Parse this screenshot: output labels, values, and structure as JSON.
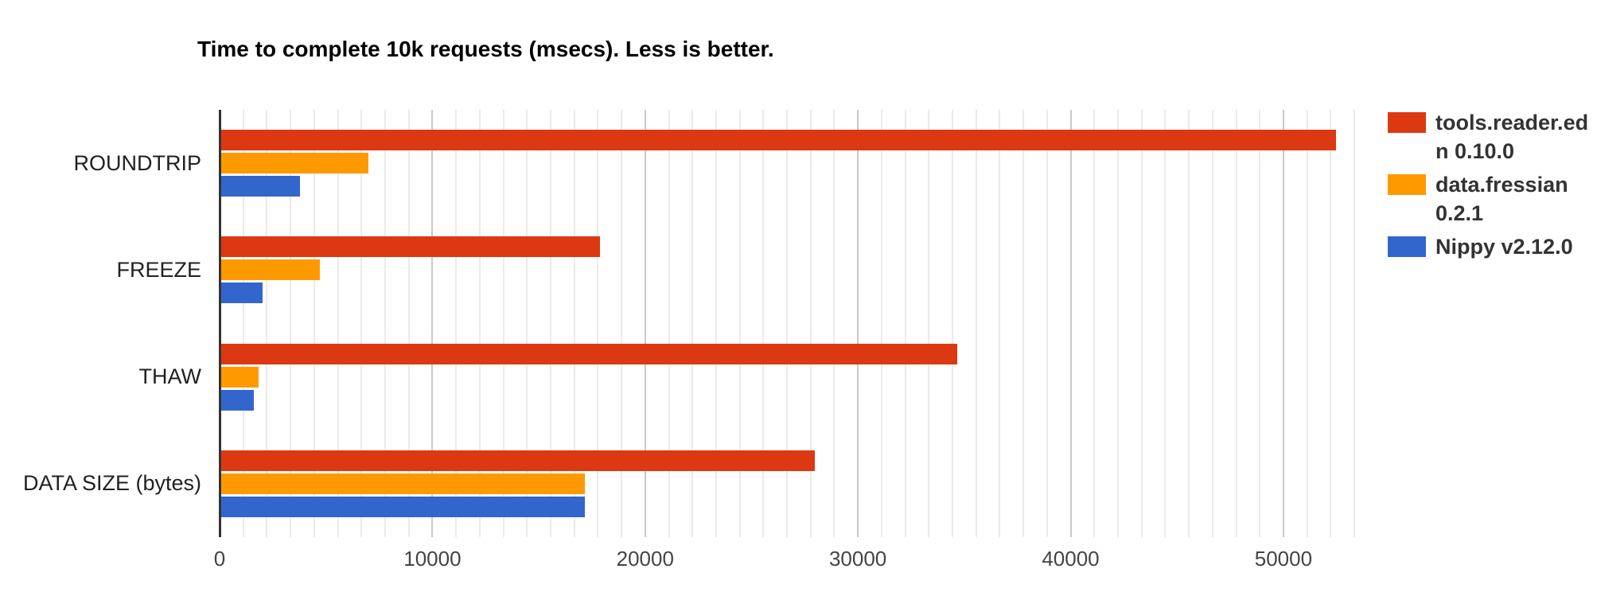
{
  "chart_data": {
    "type": "bar",
    "orientation": "horizontal",
    "title": "Time to complete 10k requests (msecs). Less is better.",
    "categories": [
      "ROUNDTRIP",
      "FREEZE",
      "THAW",
      "DATA SIZE (bytes)"
    ],
    "series": [
      {
        "name": "tools.reader.edn 0.10.0",
        "color": "#dc3912",
        "values": [
          52400,
          17800,
          34600,
          27900
        ]
      },
      {
        "name": "data.fressian 0.2.1",
        "color": "#ff9900",
        "values": [
          6900,
          4650,
          1750,
          17100
        ]
      },
      {
        "name": "Nippy v2.12.0",
        "color": "#3366cc",
        "values": [
          3700,
          1950,
          1530,
          17100
        ]
      }
    ],
    "xlabel": "",
    "ylabel": "",
    "xlim": [
      0,
      53333
    ],
    "x_tick_labels": [
      "0",
      "10000",
      "20000",
      "30000",
      "40000",
      "50000"
    ],
    "x_tick_values": [
      0,
      10000,
      20000,
      30000,
      40000,
      50000
    ],
    "grid": {
      "minor_intervals_per_major": 9,
      "minor_color": "#ebebeb",
      "major_color": "#c9c9c9",
      "baseline_color": "#333333"
    },
    "legend_position": "right",
    "background_color": "#ffffff"
  }
}
